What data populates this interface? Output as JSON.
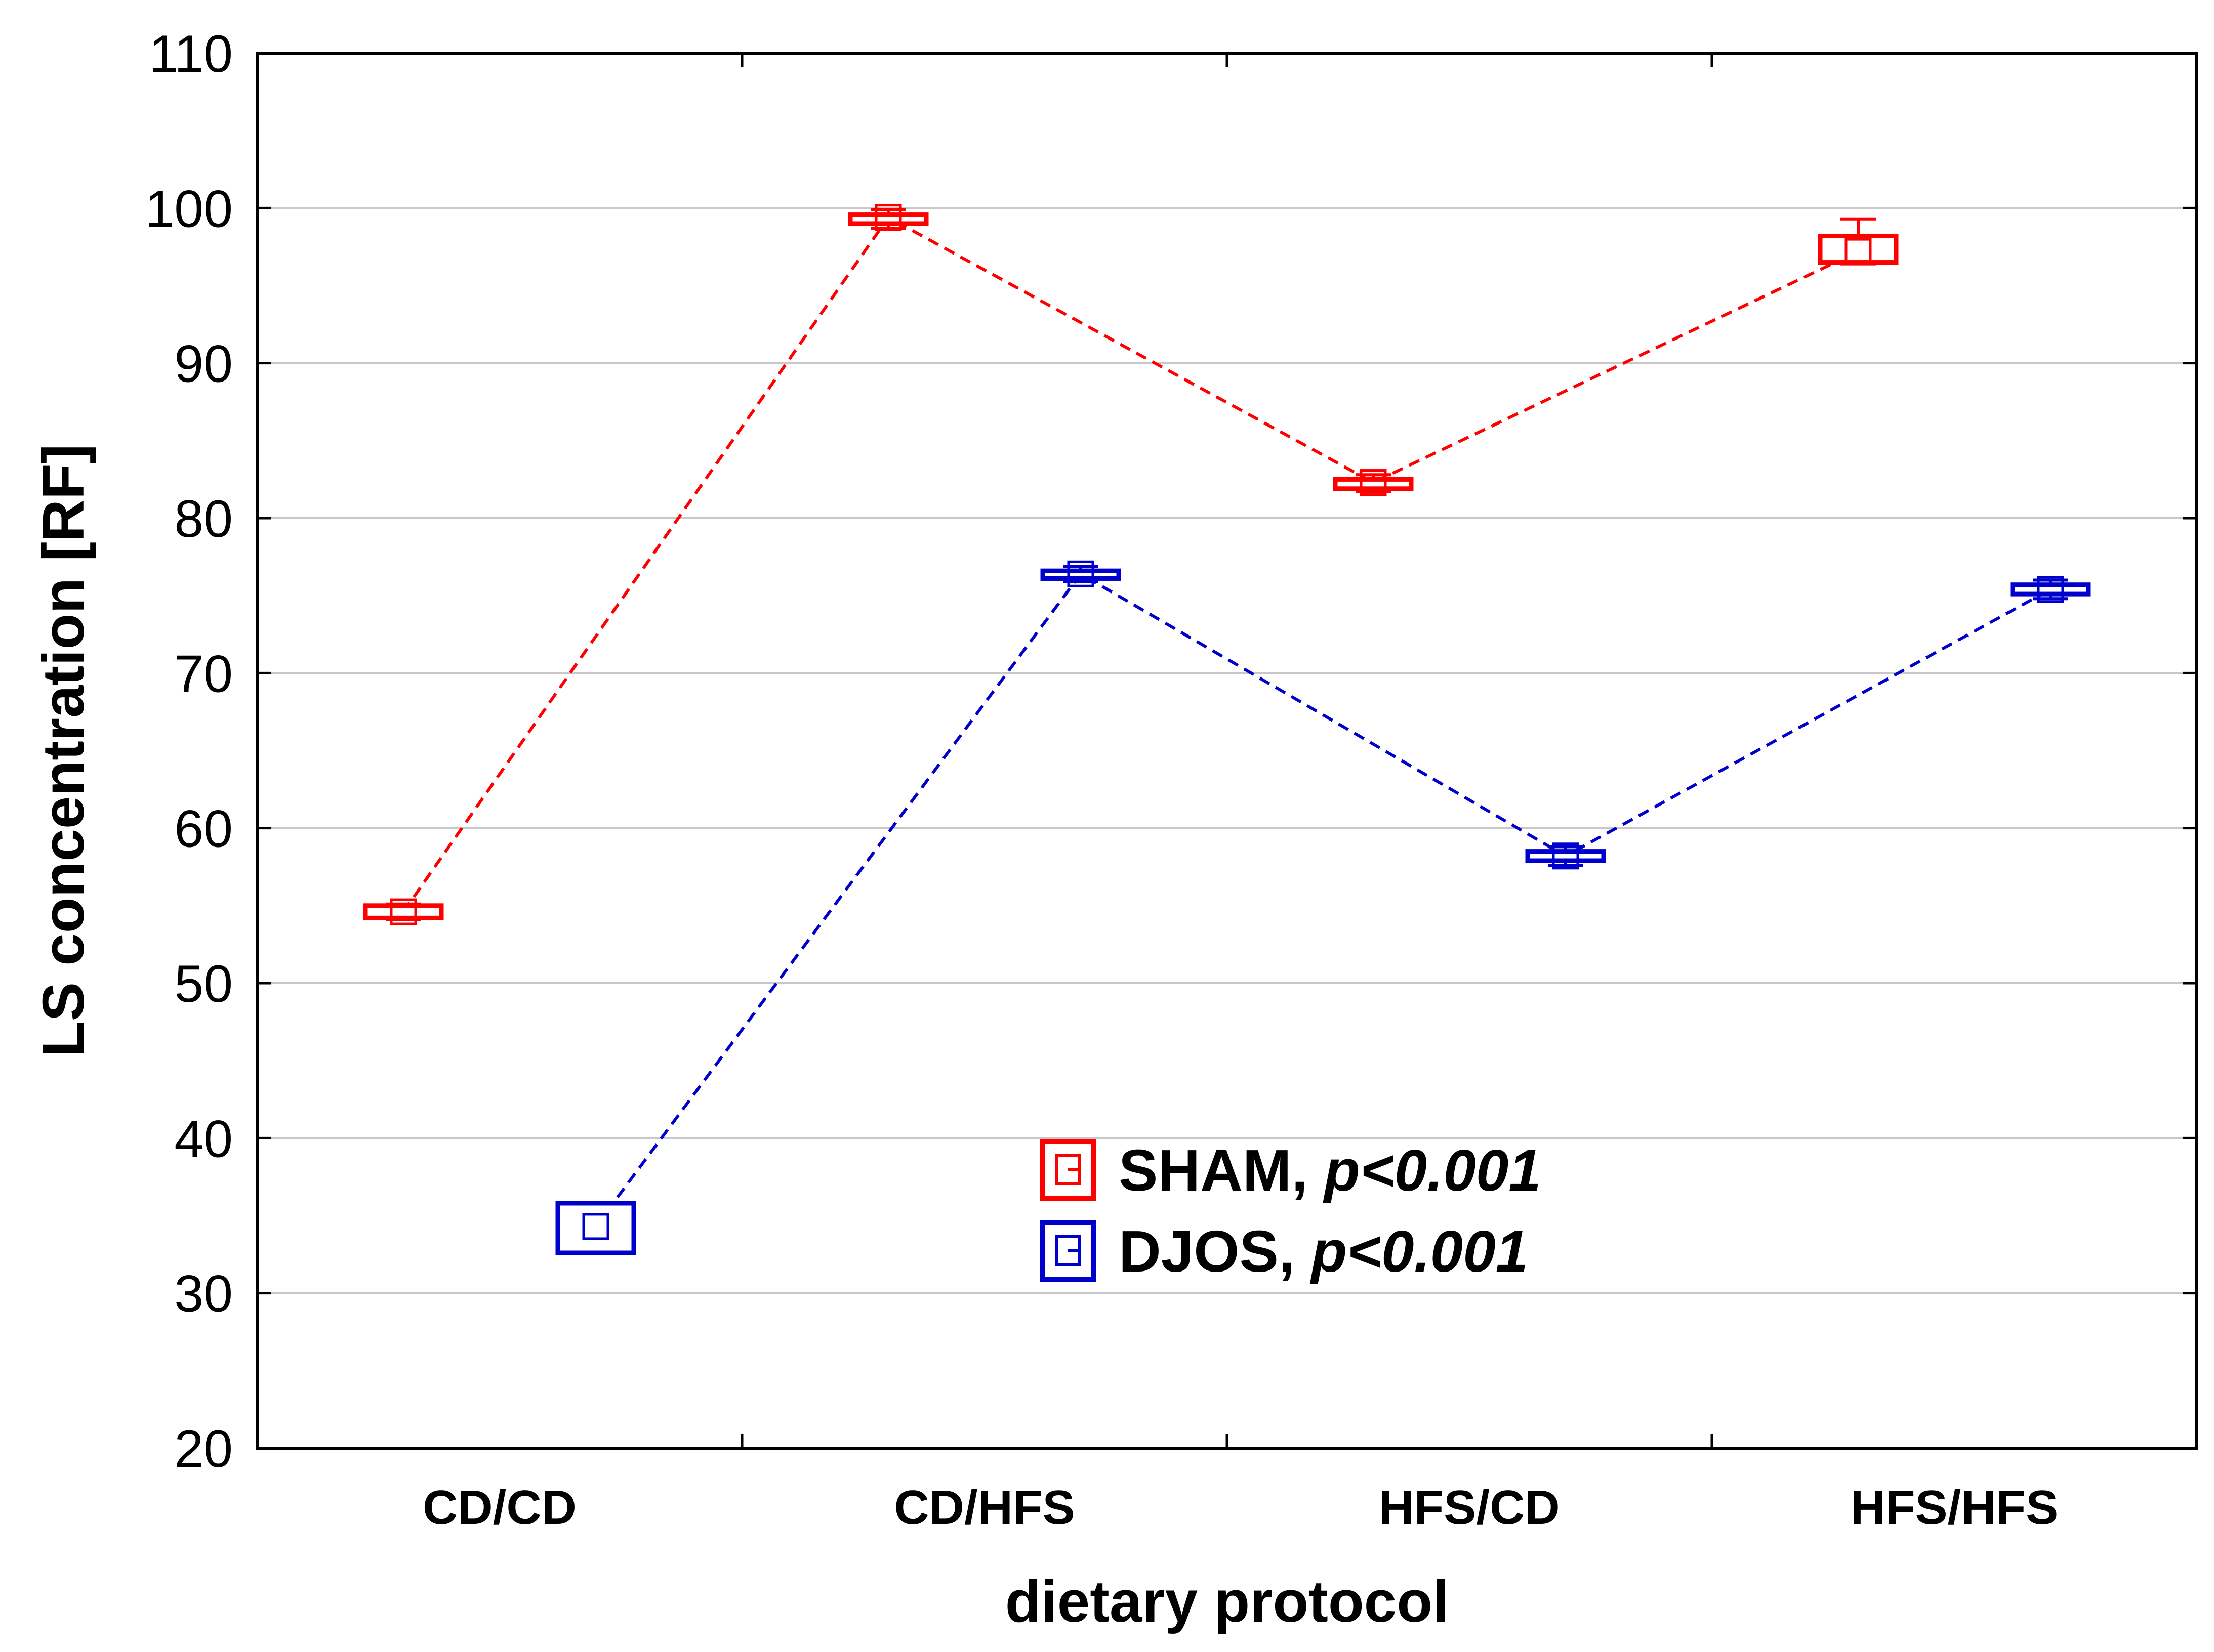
{
  "chart_data": {
    "type": "line",
    "title": "",
    "xlabel": "dietary protocol",
    "ylabel": "LS concentration [RF]",
    "categories": [
      "CD/CD",
      "CD/HFS",
      "HFS/CD",
      "HFS/HFS"
    ],
    "ylim": [
      20,
      110
    ],
    "yticks": [
      20,
      30,
      40,
      50,
      60,
      70,
      80,
      90,
      100,
      110
    ],
    "grid": true,
    "legend_position": "bottom-center",
    "series": [
      {
        "name": "SHAM",
        "legend_name": "SHAM,",
        "legend_p": "p<0.001",
        "color": "#ff0000",
        "values": [
          54.6,
          99.4,
          82.3,
          97.2
        ],
        "box_low": [
          54.2,
          99.0,
          81.9,
          96.5
        ],
        "box_high": [
          55.0,
          99.6,
          82.5,
          98.2
        ],
        "whisker_low": [
          54.1,
          98.7,
          81.7,
          96.4
        ],
        "whisker_high": [
          55.1,
          99.9,
          82.8,
          99.3
        ]
      },
      {
        "name": "DJOS",
        "legend_name": "DJOS,",
        "legend_p": "p<0.001",
        "color": "#0000cc",
        "values": [
          34.3,
          76.4,
          58.2,
          75.4
        ],
        "box_low": [
          32.6,
          76.1,
          57.9,
          75.1
        ],
        "box_high": [
          35.8,
          76.6,
          58.5,
          75.7
        ],
        "whisker_low": [
          32.6,
          75.9,
          57.6,
          74.8
        ],
        "whisker_high": [
          35.8,
          76.9,
          58.8,
          76.0
        ]
      }
    ]
  }
}
